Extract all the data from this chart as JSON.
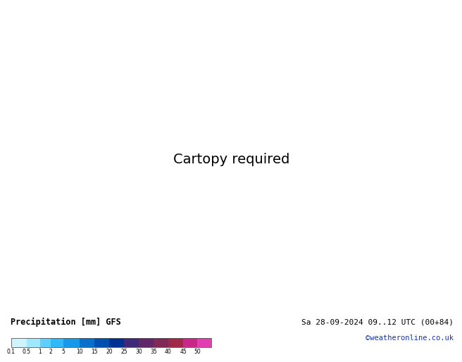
{
  "title": "Precipitation [mm] GFS",
  "date_label": "Sa 28-09-2024 09..12 UTC (00+84)",
  "credit": "©weatheronline.co.uk",
  "colorbar_levels": [
    0.1,
    0.5,
    1,
    2,
    5,
    10,
    15,
    20,
    25,
    30,
    35,
    40,
    45,
    50
  ],
  "colorbar_colors": [
    "#cff4ff",
    "#9fe8ff",
    "#60cfff",
    "#30b8f8",
    "#1898e8",
    "#0870cc",
    "#0050b0",
    "#003090",
    "#402878",
    "#602868",
    "#802858",
    "#a02848",
    "#c82888",
    "#e040b0"
  ],
  "bg_sea_color": "#ddeeff",
  "bg_land_green": "#b8d898",
  "bg_land_light": "#c8e0a8",
  "bg_border_color": "#999988",
  "contour_blue": "#1133bb",
  "contour_red": "#cc1111",
  "label_blue_fontsize": 6.5,
  "label_red_fontsize": 6.5,
  "bottom_bg": "#ffffff",
  "title_fontsize": 8.5,
  "credit_fontsize": 7.5,
  "credit_color": "#1133bb",
  "date_fontsize": 8.0
}
